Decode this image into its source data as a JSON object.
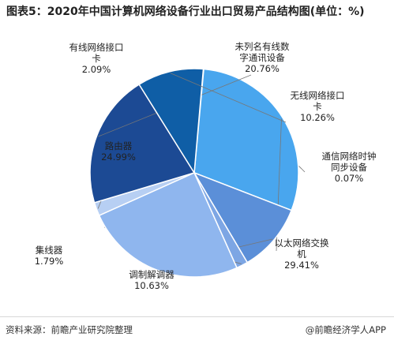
{
  "chart_data": {
    "type": "pie",
    "title": "图表5：2020年中国计算机网络设备行业出口贸易产品结构图(单位：%)",
    "slices": [
      {
        "label": [
          "通信网络时钟",
          "同步设备"
        ],
        "value": 0.07,
        "display": "0.07%",
        "color": "#2b62a8"
      },
      {
        "label": [
          "以太网络交换",
          "机"
        ],
        "value": 29.41,
        "display": "29.41%",
        "color": "#49a6ee"
      },
      {
        "label": [
          "调制解调器"
        ],
        "value": 10.63,
        "display": "10.63%",
        "color": "#5b8fd8"
      },
      {
        "label": [
          "集线器"
        ],
        "value": 1.79,
        "display": "1.79%",
        "color": "#7da6e4"
      },
      {
        "label": [
          "路由器"
        ],
        "value": 24.99,
        "display": "24.99%",
        "color": "#8fb6ee"
      },
      {
        "label": [
          "有线网络接口",
          "卡"
        ],
        "value": 2.09,
        "display": "2.09%",
        "color": "#b7cff3"
      },
      {
        "label": [
          "未列名有线数",
          "字通讯设备"
        ],
        "value": 20.76,
        "display": "20.76%",
        "color": "#1c4a94"
      },
      {
        "label": [
          "无线网络接口",
          "卡"
        ],
        "value": 10.26,
        "display": "10.26%",
        "color": "#0f5ea6"
      }
    ]
  },
  "footer": {
    "source": "资料来源：前瞻产业研究院整理",
    "brand": "@前瞻经济学人APP"
  }
}
